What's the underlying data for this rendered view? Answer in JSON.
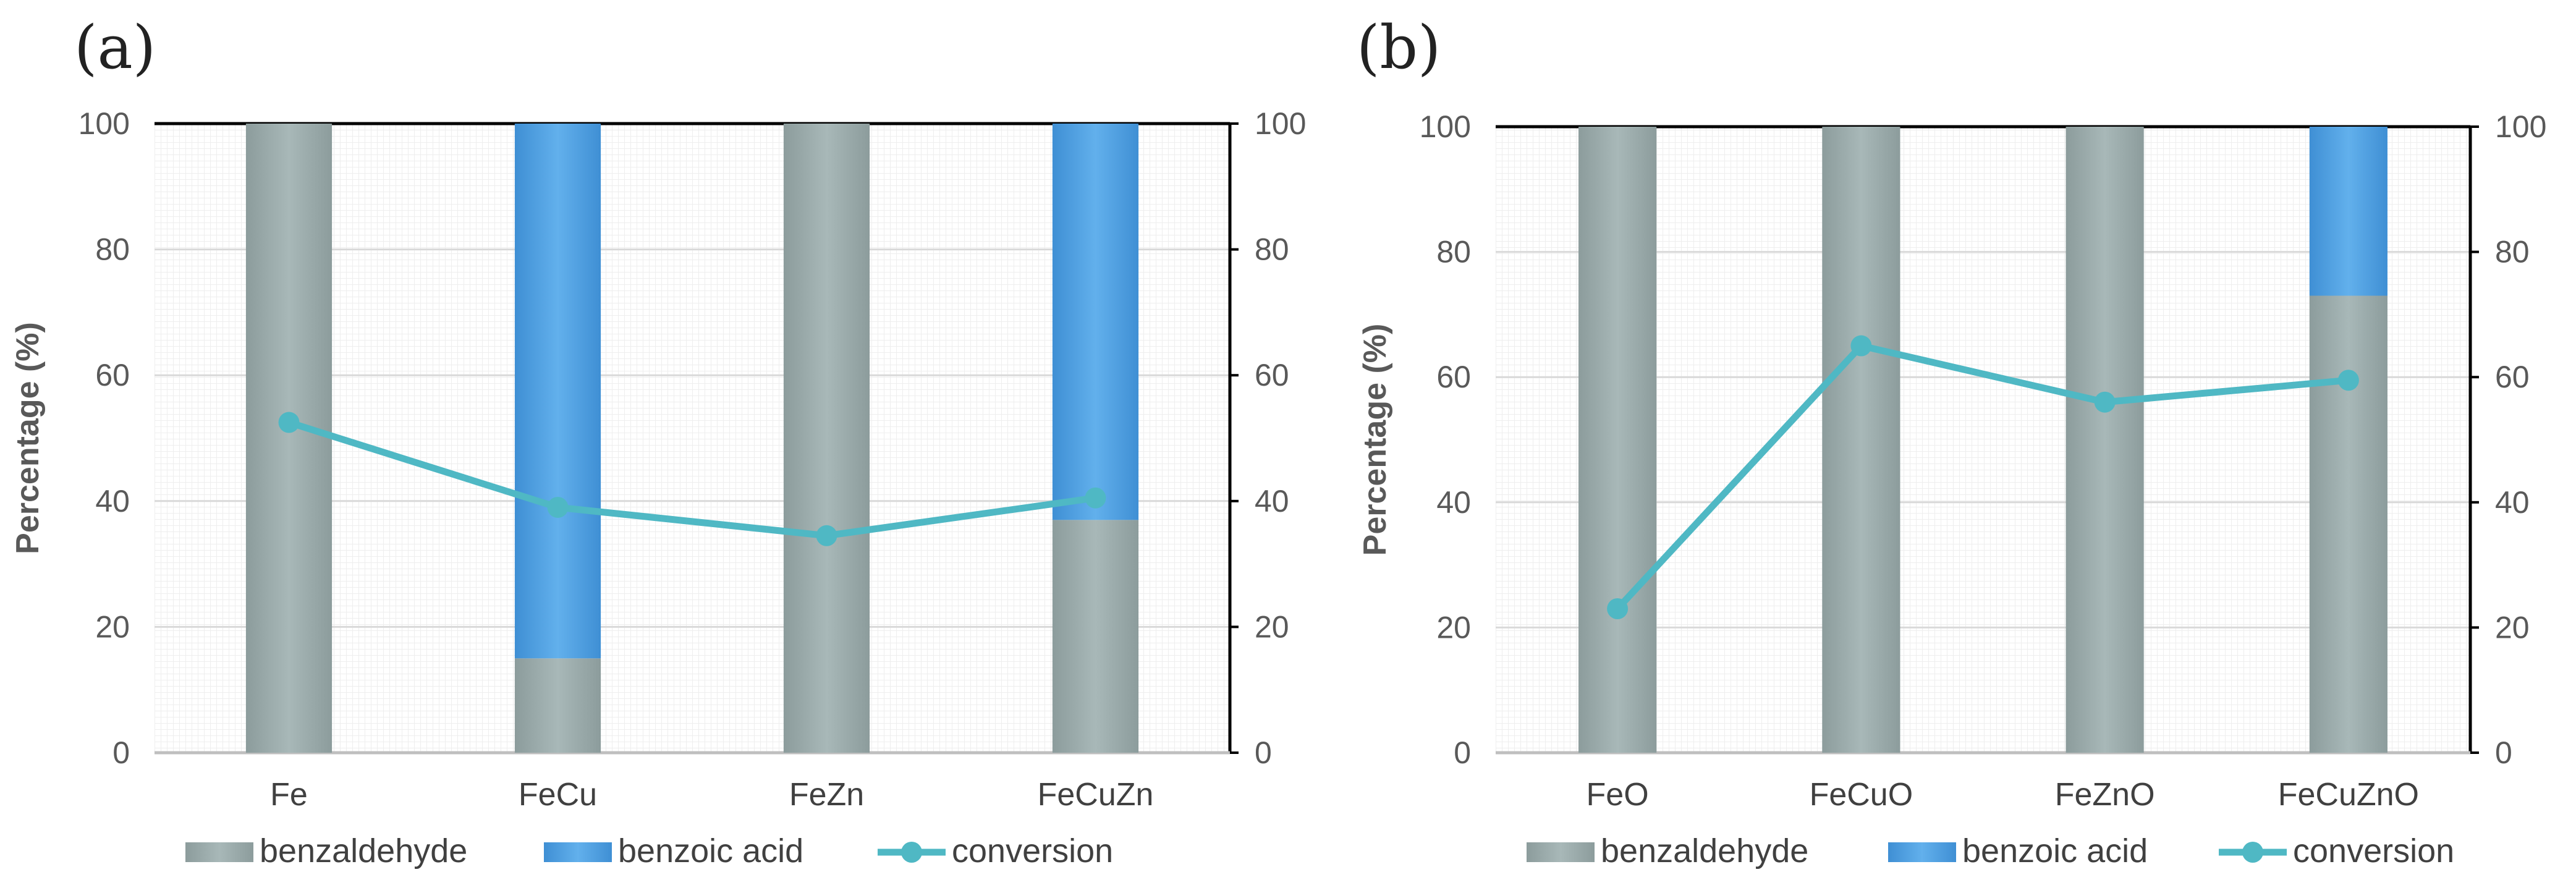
{
  "colors": {
    "benzaldehyde": "#9aabab",
    "benzoic_acid": "#4a9ee0",
    "conversion": "#4fb8c4",
    "axis": "#000000",
    "grid": "#d9d9d9"
  },
  "chart_data": [
    {
      "type": "bar",
      "panel_label": "(a)",
      "categories": [
        "Fe",
        "FeCu",
        "FeZn",
        "FeCuZn"
      ],
      "series": [
        {
          "name": "benzaldehyde",
          "kind": "stacked-bar",
          "values": [
            100,
            15,
            100,
            37
          ]
        },
        {
          "name": "benzoic acid",
          "kind": "stacked-bar",
          "values": [
            0,
            85,
            0,
            63
          ]
        },
        {
          "name": "conversion",
          "kind": "line",
          "axis": "secondary",
          "values": [
            52.5,
            39,
            34.5,
            40.5
          ]
        }
      ],
      "ylabel": "Percentage (%)",
      "ylim": [
        0,
        100
      ],
      "y2lim": [
        0,
        100
      ],
      "yticks": [
        "0",
        "20",
        "40",
        "60",
        "80",
        "100"
      ],
      "legend": [
        "benzaldehyde",
        "benzoic acid",
        "conversion"
      ],
      "legend_position": "bottom",
      "grid": true
    },
    {
      "type": "bar",
      "panel_label": "(b)",
      "categories": [
        "FeO",
        "FeCuO",
        "FeZnO",
        "FeCuZnO"
      ],
      "series": [
        {
          "name": "benzaldehyde",
          "kind": "stacked-bar",
          "values": [
            100,
            100,
            100,
            73
          ]
        },
        {
          "name": "benzoic acid",
          "kind": "stacked-bar",
          "values": [
            0,
            0,
            0,
            27
          ]
        },
        {
          "name": "conversion",
          "kind": "line",
          "axis": "secondary",
          "values": [
            23,
            65,
            56,
            59.5
          ]
        }
      ],
      "ylabel": "Percentage (%)",
      "ylim": [
        0,
        100
      ],
      "y2lim": [
        0,
        100
      ],
      "yticks": [
        "0",
        "20",
        "40",
        "60",
        "80",
        "100"
      ],
      "legend": [
        "benzaldehyde",
        "benzoic acid",
        "conversion"
      ],
      "legend_position": "bottom",
      "grid": true
    }
  ]
}
